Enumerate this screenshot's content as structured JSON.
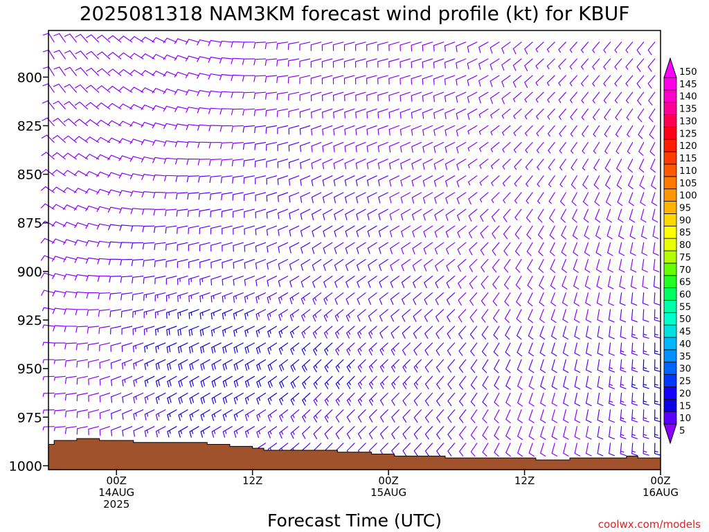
{
  "chart_data": {
    "type": "wind-profile",
    "title": "2025081318 NAM3KM forecast wind profile (kt) for KBUF",
    "xlabel": "Forecast Time (UTC)",
    "ylabel": "",
    "credit": "coolwx.com/models",
    "y_axis": {
      "scale": "pressure (hPa), inverted",
      "ylim": [
        1002,
        776
      ],
      "ticks": [
        "800",
        "825",
        "850",
        "875",
        "900",
        "925",
        "950",
        "975",
        "1000"
      ]
    },
    "x_axis": {
      "xlim_hours_from_init": [
        0,
        54
      ],
      "ticks": [
        {
          "hour": 6,
          "line1": "00Z",
          "line2": "14AUG",
          "line3": "2025"
        },
        {
          "hour": 18,
          "line1": "12Z",
          "line2": "",
          "line3": ""
        },
        {
          "hour": 30,
          "line1": "00Z",
          "line2": "15AUG",
          "line3": ""
        },
        {
          "hour": 42,
          "line1": "12Z",
          "line2": "",
          "line3": ""
        },
        {
          "hour": 54,
          "line1": "00Z",
          "line2": "16AUG",
          "line3": ""
        }
      ]
    },
    "colorbar": {
      "labels": [
        "5",
        "10",
        "15",
        "20",
        "25",
        "30",
        "35",
        "40",
        "45",
        "50",
        "55",
        "60",
        "65",
        "70",
        "75",
        "80",
        "85",
        "90",
        "95",
        "100",
        "105",
        "110",
        "115",
        "120",
        "125",
        "130",
        "135",
        "140",
        "145",
        "150"
      ],
      "colors": [
        "#8a00ff",
        "#5a00ff",
        "#0a00e6",
        "#1400ff",
        "#0038ff",
        "#0064ff",
        "#0090ff",
        "#00b8ff",
        "#00e0e0",
        "#00ffcc",
        "#00ffaa",
        "#00ff60",
        "#22ff22",
        "#66ff00",
        "#b4ff00",
        "#eaff00",
        "#ffff00",
        "#ffd800",
        "#ffb400",
        "#ff9600",
        "#ff7800",
        "#ff5a00",
        "#ff3c00",
        "#ff1e00",
        "#ff0014",
        "#ff0050",
        "#ff0096",
        "#ff00c8",
        "#ff00e6",
        "#ff00ff"
      ]
    },
    "terrain": {
      "color": "#a0522d",
      "surface_pressure": [
        {
          "hour": 0,
          "p": 989
        },
        {
          "hour": 0.5,
          "p": 987
        },
        {
          "hour": 2.5,
          "p": 986
        },
        {
          "hour": 4.5,
          "p": 987
        },
        {
          "hour": 7.5,
          "p": 988
        },
        {
          "hour": 14,
          "p": 989
        },
        {
          "hour": 16,
          "p": 990
        },
        {
          "hour": 18,
          "p": 991
        },
        {
          "hour": 19,
          "p": 992
        },
        {
          "hour": 25.5,
          "p": 993
        },
        {
          "hour": 28.5,
          "p": 994
        },
        {
          "hour": 30.5,
          "p": 995
        },
        {
          "hour": 35,
          "p": 996
        },
        {
          "hour": 43,
          "p": 997
        },
        {
          "hour": 46,
          "p": 996
        },
        {
          "hour": 51,
          "p": 995
        },
        {
          "hour": 52,
          "p": 996
        },
        {
          "hour": 54,
          "p": 995
        }
      ]
    },
    "wind_barbs": {
      "units": "kt",
      "levels_hPa": [
        975,
        950,
        925,
        900,
        875,
        850,
        825,
        800
      ],
      "grid_hours": [
        0,
        6,
        12,
        18,
        24,
        30,
        36,
        42,
        48,
        54
      ],
      "dir_deg": [
        [
          270,
          250,
          240,
          240,
          225,
          225,
          220,
          200,
          190,
          180
        ],
        [
          270,
          250,
          240,
          240,
          225,
          225,
          220,
          200,
          190,
          180
        ],
        [
          280,
          260,
          250,
          245,
          230,
          230,
          225,
          205,
          190,
          180
        ],
        [
          290,
          270,
          255,
          250,
          235,
          235,
          230,
          210,
          195,
          185
        ],
        [
          300,
          280,
          260,
          255,
          240,
          240,
          235,
          215,
          200,
          190
        ],
        [
          310,
          290,
          270,
          260,
          245,
          245,
          240,
          220,
          210,
          200
        ],
        [
          320,
          300,
          280,
          265,
          250,
          250,
          245,
          225,
          215,
          210
        ],
        [
          330,
          310,
          290,
          270,
          255,
          255,
          250,
          230,
          220,
          220
        ]
      ],
      "speed_kt": [
        [
          6,
          10,
          16,
          14,
          12,
          10,
          10,
          8,
          10,
          16
        ],
        [
          6,
          10,
          22,
          20,
          18,
          14,
          12,
          10,
          12,
          18
        ],
        [
          7,
          10,
          18,
          16,
          14,
          12,
          10,
          10,
          10,
          14
        ],
        [
          8,
          10,
          12,
          12,
          12,
          10,
          10,
          8,
          8,
          10
        ],
        [
          8,
          10,
          10,
          10,
          10,
          10,
          8,
          8,
          8,
          8
        ],
        [
          8,
          8,
          10,
          10,
          10,
          10,
          8,
          6,
          8,
          8
        ],
        [
          8,
          8,
          8,
          10,
          10,
          8,
          8,
          6,
          6,
          8
        ],
        [
          8,
          8,
          8,
          8,
          8,
          8,
          8,
          8,
          6,
          8
        ]
      ]
    }
  }
}
